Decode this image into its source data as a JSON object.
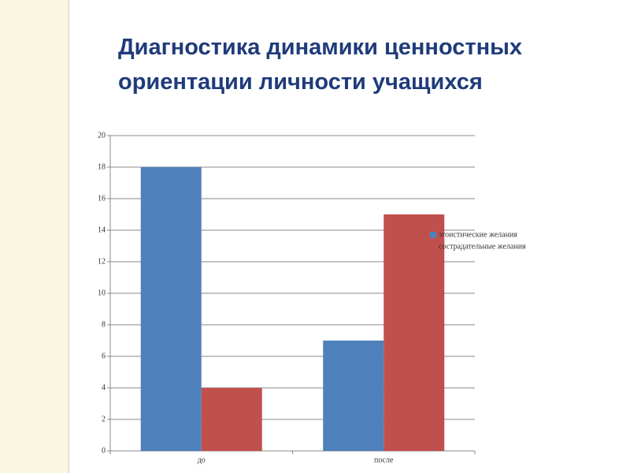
{
  "chart_data": {
    "type": "bar",
    "title": "Диагностика динамики ценностных ориентации личности учащихся",
    "categories": [
      "до",
      "после"
    ],
    "series": [
      {
        "name": "эгоистические желания",
        "color": "#4f81bd",
        "values": [
          18,
          7
        ]
      },
      {
        "name": "сострадательные желания",
        "color": "#c0504d",
        "values": [
          4,
          15
        ]
      }
    ],
    "ylim": [
      0,
      20
    ],
    "yticks": [
      0,
      2,
      4,
      6,
      8,
      10,
      12,
      14,
      16,
      18,
      20
    ],
    "grid": true
  }
}
